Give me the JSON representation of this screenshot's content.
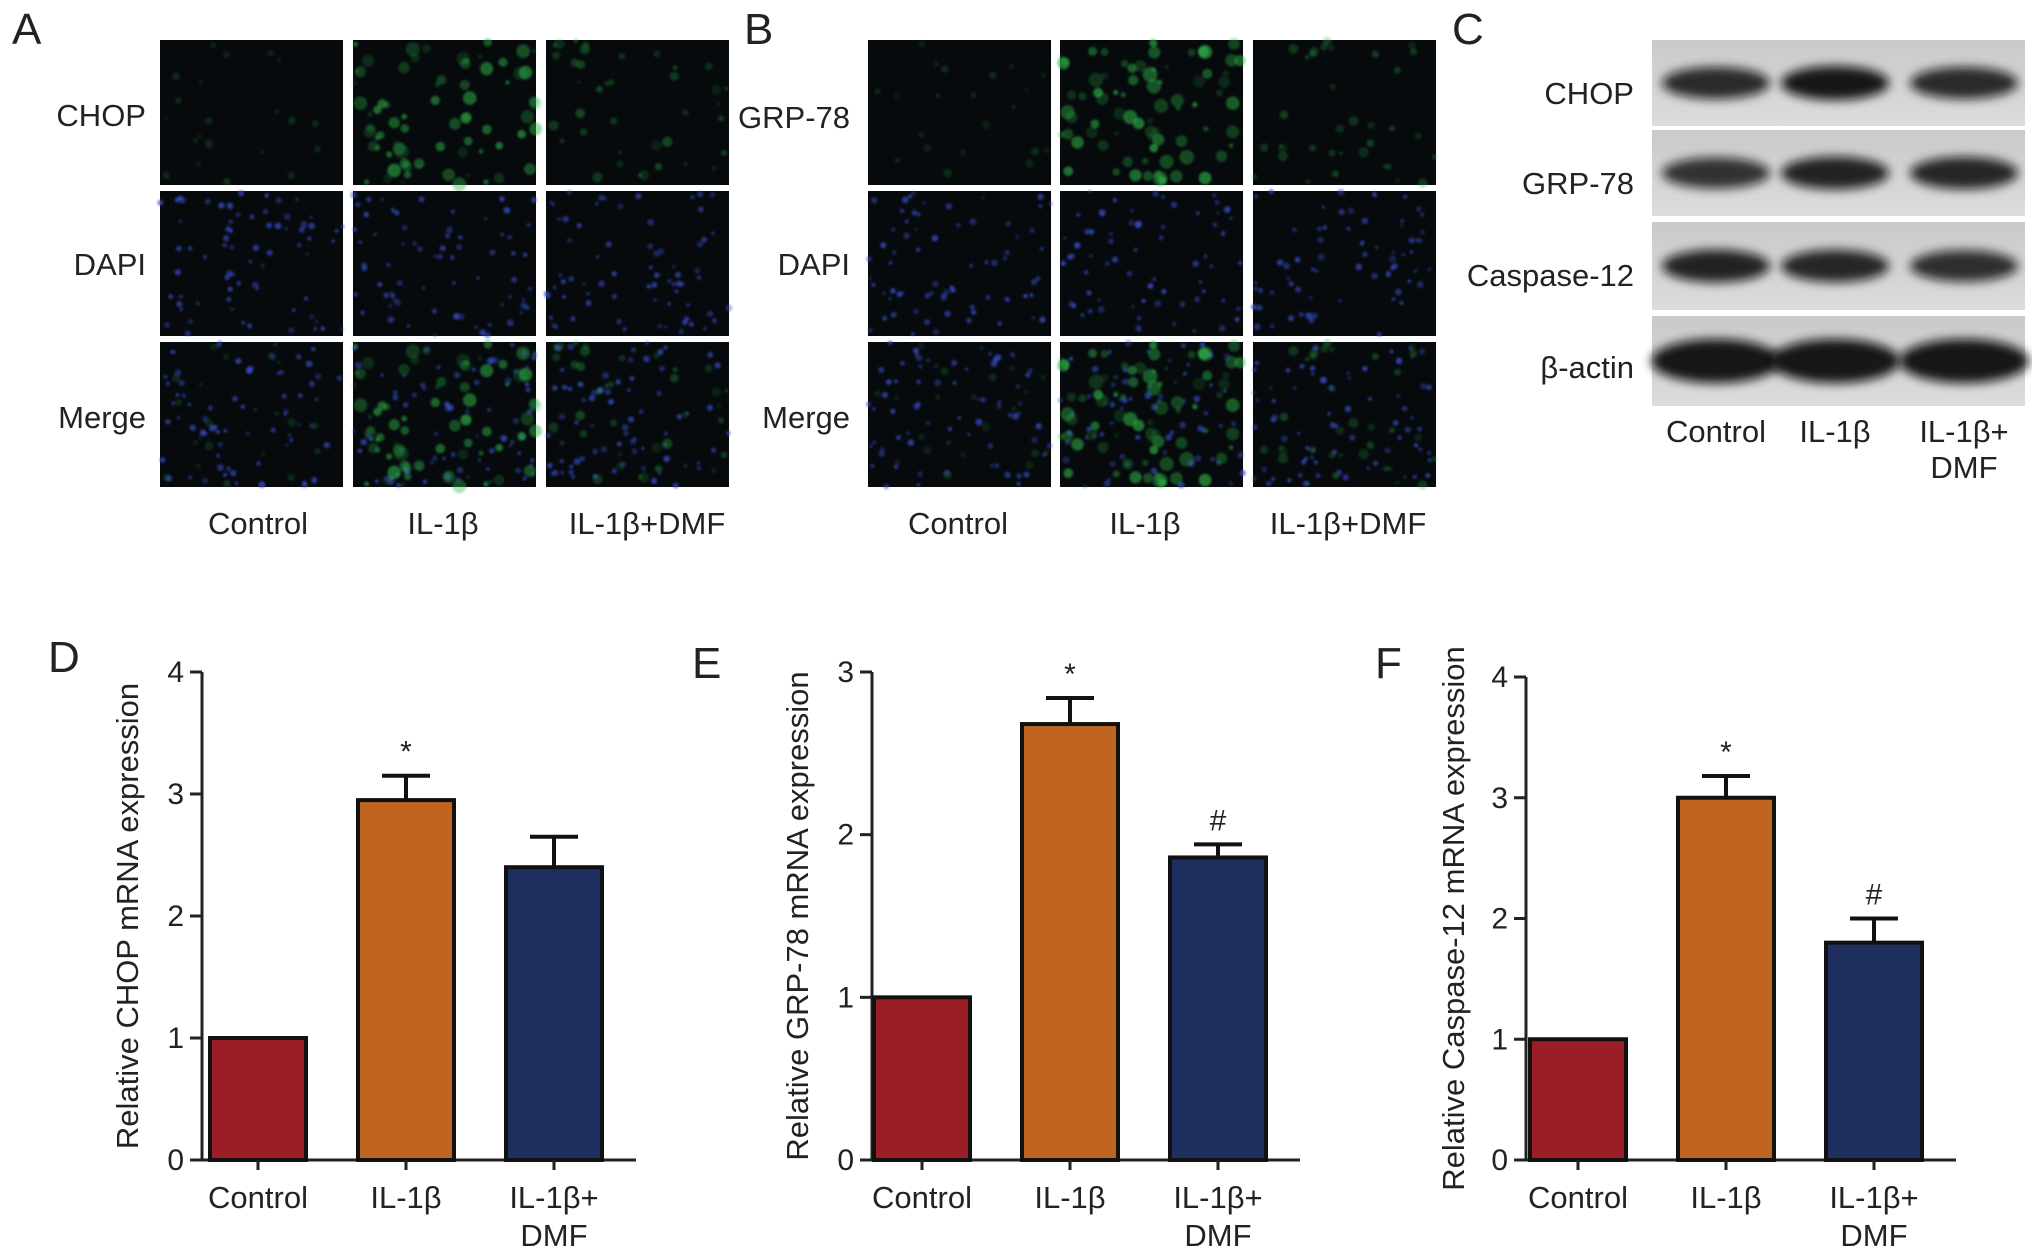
{
  "panels": {
    "A": {
      "letter": "A",
      "rows": [
        "CHOP",
        "DAPI",
        "Merge"
      ],
      "columns": [
        "Control",
        "IL-1β",
        "IL-1β+DMF"
      ]
    },
    "B": {
      "letter": "B",
      "rows": [
        "GRP-78",
        "DAPI",
        "Merge"
      ],
      "columns": [
        "Control",
        "IL-1β",
        "IL-1β+DMF"
      ]
    },
    "C": {
      "letter": "C",
      "rows": [
        "CHOP",
        "GRP-78",
        "Caspase-12",
        "β-actin"
      ],
      "columns": [
        "Control",
        "IL-1β",
        "IL-1β+",
        "DMF"
      ]
    }
  },
  "colors": {
    "control": "#9b1d25",
    "il1b": "#c06520",
    "il1b_dmf": "#1e2e5e",
    "green_channel": "#2fb84a",
    "blue_channel": "#3a4fd0",
    "micrograph_bg": "#060a0c"
  },
  "chart_data": [
    {
      "panel": "D",
      "type": "bar",
      "categories": [
        [
          "Control"
        ],
        [
          "IL-1β"
        ],
        [
          "IL-1β+",
          "DMF"
        ]
      ],
      "values": [
        1.0,
        2.95,
        2.4
      ],
      "errors": [
        0,
        0.2,
        0.25
      ],
      "significance": [
        "",
        "*",
        ""
      ],
      "ylabel": "Relative CHOP mRNA expression",
      "ylim": [
        0,
        4
      ],
      "yticks": [
        "0",
        "1",
        "2",
        "3",
        "4"
      ]
    },
    {
      "panel": "E",
      "type": "bar",
      "categories": [
        [
          "Control"
        ],
        [
          "IL-1β"
        ],
        [
          "IL-1β+",
          "DMF"
        ]
      ],
      "values": [
        1.0,
        2.68,
        1.86
      ],
      "errors": [
        0,
        0.16,
        0.08
      ],
      "significance": [
        "",
        "*",
        "#"
      ],
      "ylabel": "Relative GRP-78 mRNA expression",
      "ylim": [
        0,
        3
      ],
      "yticks": [
        "0",
        "1",
        "2",
        "3"
      ]
    },
    {
      "panel": "F",
      "type": "bar",
      "categories": [
        [
          "Control"
        ],
        [
          "IL-1β"
        ],
        [
          "IL-1β+",
          "DMF"
        ]
      ],
      "values": [
        1.0,
        3.0,
        1.8
      ],
      "errors": [
        0,
        0.18,
        0.2
      ],
      "significance": [
        "",
        "*",
        "#"
      ],
      "ylabel": "Relative Caspase-12 mRNA expression",
      "ylim": [
        0,
        4
      ],
      "yticks": [
        "0",
        "1",
        "2",
        "3",
        "4"
      ]
    }
  ]
}
